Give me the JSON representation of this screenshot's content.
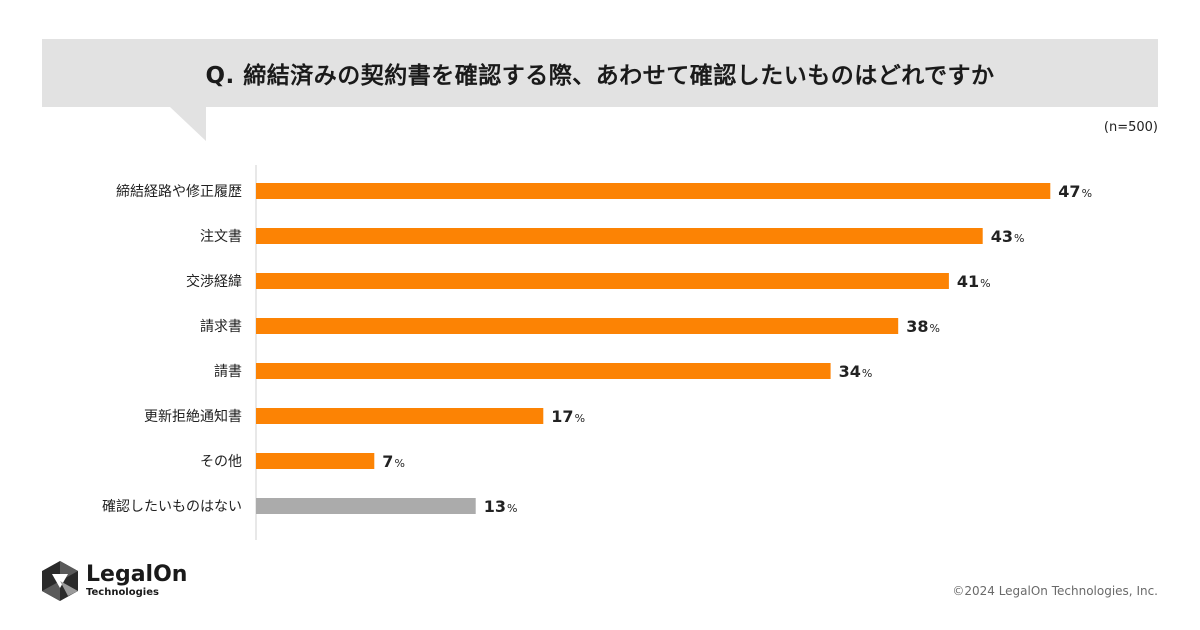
{
  "header": {
    "title": "Q. 締結済みの契約書を確認する際、あわせて確認したいものはどれですか",
    "sample_size": "(n=500)"
  },
  "chart_data": {
    "type": "bar",
    "orientation": "horizontal",
    "categories": [
      "締結経路や修正履歴",
      "注文書",
      "交渉経緯",
      "請求書",
      "請書",
      "更新拒絶通知書",
      "その他",
      "確認したいものはない"
    ],
    "values": [
      47,
      43,
      41,
      38,
      34,
      17,
      7,
      13
    ],
    "unit": "%",
    "xlim": [
      0,
      50
    ],
    "grid": false,
    "legend": "none",
    "colors": {
      "bar": "#fc8304",
      "bar_none": "#ababab",
      "axis": "#d0d0d0"
    }
  },
  "footer": {
    "brand_name": "LegalOn",
    "brand_sub": "Technologies",
    "copyright": "©2024 LegalOn Technologies, Inc."
  }
}
